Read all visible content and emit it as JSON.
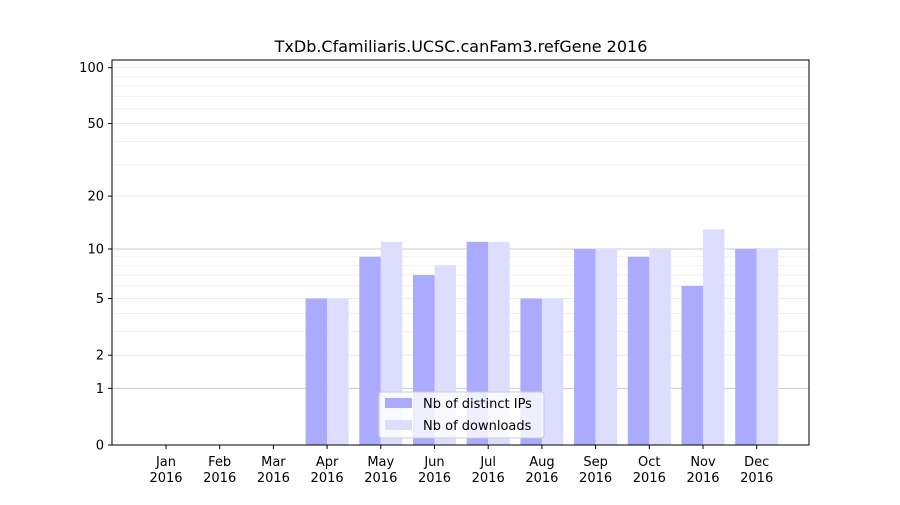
{
  "chart_data": {
    "type": "bar",
    "title": "TxDb.Cfamiliaris.UCSC.canFam3.refGene 2016",
    "xlabel": "",
    "ylabel": "",
    "yscale": "log1p",
    "ylim": [
      0,
      110
    ],
    "yticks": [
      0,
      1,
      2,
      5,
      10,
      20,
      50,
      100
    ],
    "grid": "y",
    "legend_position": "lower center",
    "categories": [
      [
        "Jan",
        "2016"
      ],
      [
        "Feb",
        "2016"
      ],
      [
        "Mar",
        "2016"
      ],
      [
        "Apr",
        "2016"
      ],
      [
        "May",
        "2016"
      ],
      [
        "Jun",
        "2016"
      ],
      [
        "Jul",
        "2016"
      ],
      [
        "Aug",
        "2016"
      ],
      [
        "Sep",
        "2016"
      ],
      [
        "Oct",
        "2016"
      ],
      [
        "Nov",
        "2016"
      ],
      [
        "Dec",
        "2016"
      ]
    ],
    "series": [
      {
        "name": "Nb of distinct IPs",
        "color": "#aaaaff",
        "values": [
          0,
          0,
          0,
          5,
          9,
          7,
          11,
          5,
          10,
          9,
          6,
          10
        ]
      },
      {
        "name": "Nb of downloads",
        "color": "#ddddff",
        "values": [
          0,
          0,
          0,
          5,
          11,
          8,
          11,
          5,
          10,
          10,
          13,
          10
        ]
      }
    ]
  }
}
